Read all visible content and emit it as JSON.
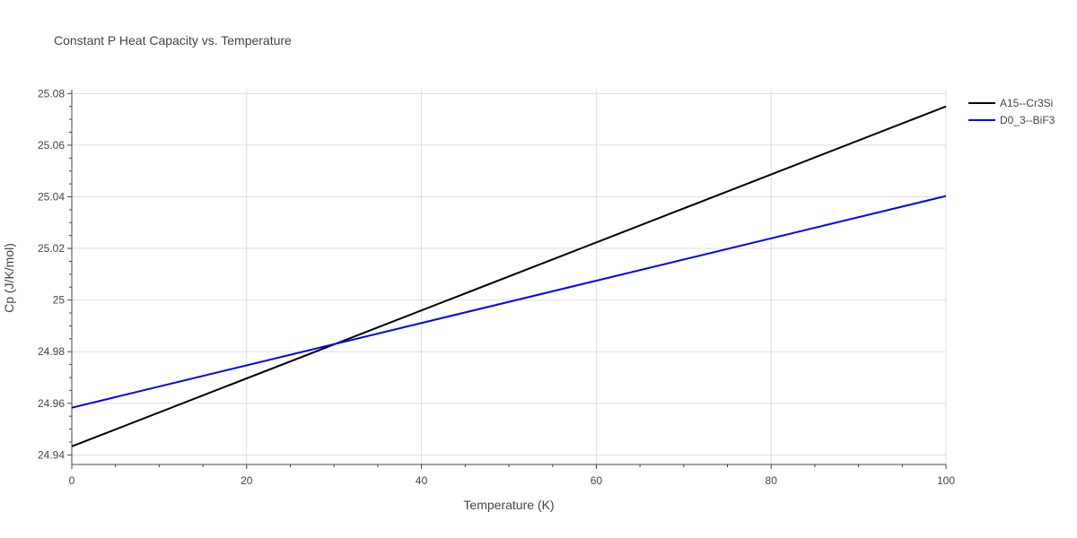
{
  "chart_data": {
    "type": "line",
    "title": "Constant P Heat Capacity vs. Temperature",
    "xlabel": "Temperature (K)",
    "ylabel": "Cp (J/K/mol)",
    "xlim": [
      0,
      100
    ],
    "ylim": [
      24.9363,
      25.0815
    ],
    "x_ticks": [
      0,
      20,
      40,
      60,
      80,
      100
    ],
    "x_tick_labels": [
      "0",
      "20",
      "40",
      "60",
      "80",
      "100"
    ],
    "y_ticks": [
      24.94,
      24.96,
      24.98,
      25.0,
      25.02,
      25.04,
      25.06,
      25.08
    ],
    "y_tick_labels": [
      "24.94",
      "24.96",
      "24.98",
      "25",
      "25.02",
      "25.04",
      "25.06",
      "25.08"
    ],
    "grid": true,
    "legend_position": "top-right outside",
    "series": [
      {
        "name": "A15--Cr3Si",
        "color": "#000000",
        "x": [
          0,
          100
        ],
        "y": [
          24.9433,
          25.075
        ]
      },
      {
        "name": "D0_3--BiF3",
        "color": "#0000ee",
        "x": [
          0,
          100
        ],
        "y": [
          24.9583,
          25.0403
        ]
      }
    ]
  }
}
